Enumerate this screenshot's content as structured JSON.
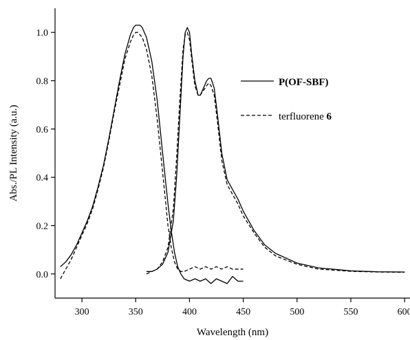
{
  "chart_data": {
    "type": "line",
    "xlabel": "Wavelength (nm)",
    "ylabel": "Abs./PL Intensity (a.u.)",
    "xlim": [
      275,
      605
    ],
    "ylim": [
      -0.1,
      1.1
    ],
    "grid": false,
    "legend_position": "right",
    "x_ticks": [
      300,
      350,
      400,
      450,
      500,
      550,
      600
    ],
    "y_ticks": [
      0.0,
      0.2,
      0.4,
      0.6,
      0.8,
      1.0
    ],
    "x_tick_labels": [
      "300",
      "350",
      "400",
      "450",
      "500",
      "550",
      "600"
    ],
    "y_tick_labels": [
      "0.0",
      "0.2",
      "0.4",
      "0.6",
      "0.8",
      "1.0"
    ],
    "legend": [
      {
        "name": "P(OF-SBF)",
        "name_bold": "P(OF-SBF)",
        "name_normal": "",
        "style": "solid"
      },
      {
        "name": "terfluorene 6",
        "name_bold": "6",
        "name_normal": "terfluorene ",
        "style": "dashed"
      }
    ],
    "series": [
      {
        "name": "P(OF-SBF) absorption",
        "style": "solid",
        "x": [
          280,
          285,
          290,
          295,
          300,
          305,
          310,
          315,
          320,
          325,
          330,
          335,
          340,
          345,
          348,
          350,
          352,
          354,
          356,
          360,
          365,
          370,
          375,
          380,
          383,
          386,
          389,
          392,
          395,
          400,
          405,
          410,
          415,
          420,
          425,
          430,
          435,
          440,
          445,
          450
        ],
        "y": [
          0.03,
          0.05,
          0.08,
          0.12,
          0.17,
          0.22,
          0.28,
          0.36,
          0.45,
          0.56,
          0.68,
          0.8,
          0.91,
          0.99,
          1.02,
          1.03,
          1.03,
          1.03,
          1.02,
          0.98,
          0.88,
          0.72,
          0.5,
          0.29,
          0.18,
          0.09,
          0.03,
          0.0,
          -0.02,
          -0.03,
          -0.02,
          -0.03,
          -0.02,
          -0.04,
          -0.02,
          -0.03,
          -0.04,
          -0.01,
          -0.03,
          -0.03
        ]
      },
      {
        "name": "terfluorene 6 absorption",
        "style": "dashed",
        "x": [
          280,
          285,
          290,
          295,
          300,
          305,
          310,
          315,
          320,
          325,
          330,
          335,
          340,
          345,
          348,
          350,
          352,
          354,
          356,
          360,
          365,
          370,
          375,
          380,
          383,
          386,
          389,
          392,
          395,
          400,
          405,
          410,
          415,
          420,
          425,
          430,
          435,
          440,
          445,
          450
        ],
        "y": [
          -0.02,
          0.02,
          0.06,
          0.11,
          0.16,
          0.21,
          0.27,
          0.35,
          0.44,
          0.55,
          0.67,
          0.78,
          0.89,
          0.96,
          0.99,
          1.0,
          1.0,
          0.99,
          0.98,
          0.93,
          0.82,
          0.64,
          0.42,
          0.2,
          0.11,
          0.05,
          0.02,
          0.01,
          0.01,
          0.02,
          0.03,
          0.02,
          0.03,
          0.02,
          0.03,
          0.02,
          0.03,
          0.02,
          0.02,
          0.02
        ]
      },
      {
        "name": "P(OF-SBF) emission",
        "style": "solid",
        "x": [
          360,
          365,
          370,
          375,
          380,
          385,
          388,
          391,
          394,
          396,
          398,
          400,
          402,
          405,
          408,
          410,
          413,
          416,
          418,
          420,
          423,
          426,
          430,
          435,
          440,
          445,
          450,
          460,
          470,
          480,
          500,
          520,
          550,
          575,
          600
        ],
        "y": [
          0.01,
          0.01,
          0.02,
          0.04,
          0.09,
          0.22,
          0.4,
          0.65,
          0.9,
          1.0,
          1.02,
          1.0,
          0.91,
          0.8,
          0.74,
          0.74,
          0.77,
          0.8,
          0.81,
          0.81,
          0.77,
          0.66,
          0.5,
          0.39,
          0.35,
          0.31,
          0.26,
          0.18,
          0.12,
          0.085,
          0.045,
          0.025,
          0.013,
          0.009,
          0.008
        ]
      },
      {
        "name": "terfluorene 6 emission",
        "style": "dashed",
        "x": [
          360,
          365,
          370,
          375,
          380,
          385,
          388,
          391,
          394,
          396,
          398,
          400,
          402,
          405,
          408,
          410,
          413,
          416,
          418,
          420,
          423,
          426,
          430,
          435,
          440,
          445,
          450,
          460,
          470,
          480,
          500,
          520,
          550,
          575,
          600
        ],
        "y": [
          0.0,
          0.01,
          0.02,
          0.05,
          0.11,
          0.27,
          0.48,
          0.72,
          0.93,
          0.99,
          1.0,
          0.97,
          0.89,
          0.78,
          0.74,
          0.74,
          0.76,
          0.78,
          0.79,
          0.78,
          0.74,
          0.63,
          0.47,
          0.37,
          0.33,
          0.29,
          0.24,
          0.17,
          0.11,
          0.075,
          0.04,
          0.02,
          0.011,
          0.008,
          0.007
        ]
      }
    ]
  }
}
